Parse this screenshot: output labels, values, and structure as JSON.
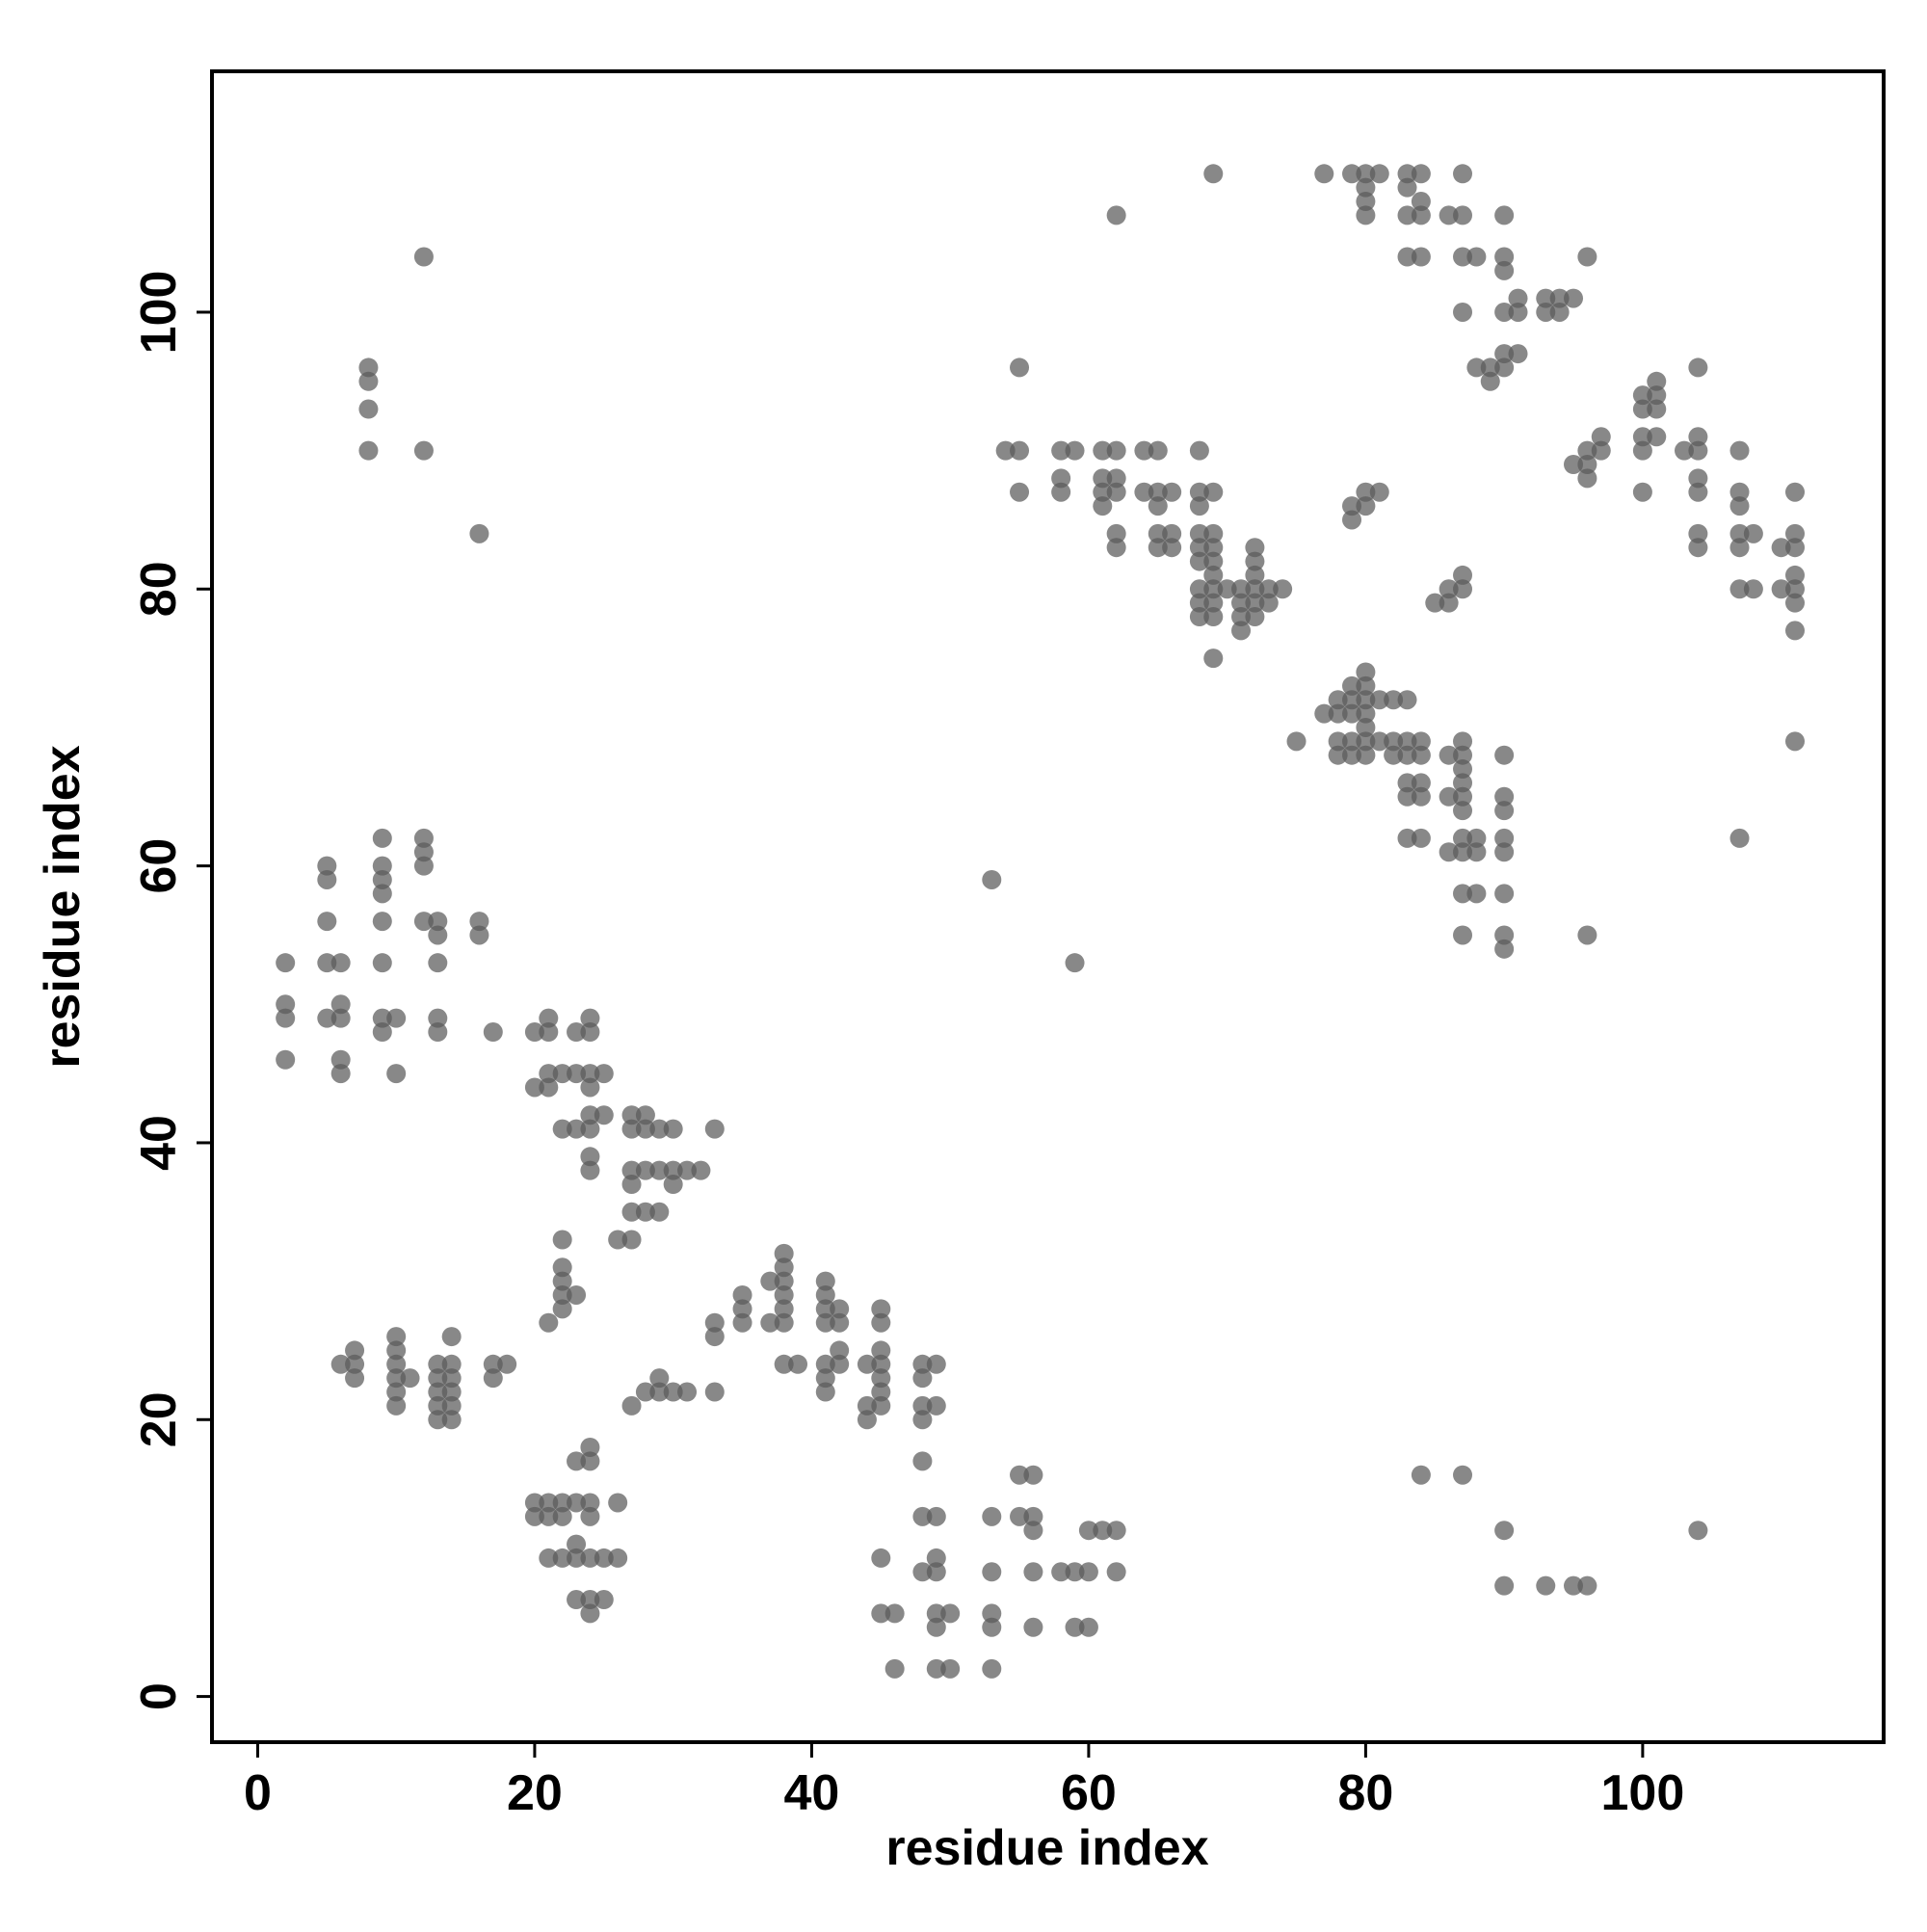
{
  "chart_data": {
    "type": "scatter",
    "xlabel": "residue index",
    "ylabel": "residue index",
    "xlim": [
      -3.3,
      117.4
    ],
    "ylim": [
      -3.3,
      117.4
    ],
    "xticks": [
      0,
      20,
      40,
      60,
      80,
      100
    ],
    "yticks": [
      0,
      20,
      40,
      60,
      80,
      100
    ],
    "color": "#5a5a5a",
    "grid": false,
    "x": [
      69,
      77,
      79,
      80,
      81,
      83,
      84,
      87,
      80,
      83,
      80,
      84,
      62,
      80,
      83,
      84,
      86,
      87,
      90,
      12,
      83,
      84,
      87,
      88,
      90,
      96,
      90,
      91,
      93,
      94,
      95,
      87,
      90,
      91,
      93,
      94,
      90,
      91,
      8,
      55,
      88,
      89,
      90,
      104,
      8,
      89,
      101,
      100,
      101,
      8,
      100,
      101,
      97,
      100,
      101,
      104,
      8,
      12,
      54,
      55,
      58,
      59,
      61,
      62,
      64,
      65,
      68,
      96,
      97,
      100,
      103,
      104,
      107,
      95,
      96,
      58,
      61,
      62,
      96,
      104,
      55,
      58,
      61,
      62,
      64,
      65,
      66,
      68,
      69,
      80,
      81,
      100,
      104,
      107,
      111,
      61,
      65,
      68,
      79,
      80,
      107,
      79,
      16,
      62,
      65,
      66,
      68,
      69,
      104,
      107,
      108,
      111,
      62,
      65,
      66,
      68,
      69,
      72,
      104,
      107,
      110,
      111,
      68,
      69,
      72,
      69,
      72,
      87,
      111,
      68,
      69,
      70,
      71,
      72,
      73,
      74,
      86,
      87,
      107,
      108,
      110,
      111,
      68,
      69,
      71,
      72,
      73,
      85,
      86,
      111,
      68,
      69,
      71,
      72,
      71,
      111,
      69,
      80,
      79,
      80,
      78,
      79,
      80,
      81,
      82,
      83,
      77,
      78,
      79,
      80,
      80,
      75,
      78,
      79,
      80,
      81,
      82,
      83,
      84,
      87,
      111,
      78,
      79,
      80,
      82,
      83,
      84,
      86,
      87,
      90,
      87,
      83,
      84,
      87,
      83,
      84,
      86,
      87,
      90,
      87,
      90,
      9,
      12,
      83,
      84,
      87,
      88,
      90,
      107,
      12,
      86,
      87,
      88,
      90,
      5,
      9,
      12,
      5,
      9,
      53,
      9,
      87,
      88,
      90,
      5,
      9,
      12,
      13,
      16,
      13,
      16,
      87,
      90,
      96,
      90,
      2,
      5,
      6,
      9,
      13,
      59,
      2,
      6,
      2,
      5,
      6,
      9,
      10,
      13,
      21,
      24,
      9,
      13,
      17,
      20,
      21,
      23,
      24,
      2,
      6,
      6,
      10,
      21,
      22,
      23,
      24,
      25,
      20,
      21,
      24,
      24,
      25,
      27,
      28,
      22,
      23,
      24,
      27,
      28,
      29,
      30,
      33,
      24,
      24,
      27,
      28,
      29,
      30,
      31,
      32,
      27,
      30,
      27,
      28,
      29,
      22,
      26,
      27,
      38,
      22,
      38,
      22,
      37,
      38,
      41,
      22,
      23,
      35,
      38,
      41,
      22,
      35,
      38,
      41,
      42,
      45,
      21,
      33,
      35,
      37,
      38,
      41,
      42,
      45,
      10,
      14,
      33,
      7,
      10,
      42,
      45,
      6,
      7,
      10,
      13,
      14,
      17,
      18,
      38,
      39,
      41,
      42,
      44,
      45,
      48,
      49,
      7,
      10,
      11,
      13,
      14,
      17,
      29,
      41,
      45,
      48,
      10,
      13,
      14,
      28,
      29,
      30,
      31,
      33,
      41,
      45,
      10,
      13,
      14,
      27,
      44,
      45,
      48,
      49,
      13,
      14,
      44,
      48,
      24,
      23,
      24,
      48,
      55,
      56,
      84,
      87,
      20,
      21,
      22,
      23,
      24,
      26,
      20,
      21,
      22,
      24,
      48,
      49,
      53,
      55,
      56,
      56,
      60,
      61,
      62,
      90,
      104,
      23,
      21,
      22,
      23,
      24,
      25,
      26,
      45,
      49,
      48,
      49,
      53,
      56,
      58,
      59,
      60,
      62,
      90,
      93,
      95,
      96,
      23,
      24,
      25,
      24,
      45,
      46,
      49,
      50,
      53,
      49,
      53,
      56,
      59,
      60,
      46,
      49,
      50,
      53
    ],
    "values": [
      110,
      110,
      110,
      110,
      110,
      110,
      110,
      110,
      109,
      109,
      108,
      108,
      107,
      107,
      107,
      107,
      107,
      107,
      107,
      104,
      104,
      104,
      104,
      104,
      104,
      104,
      103,
      101,
      101,
      101,
      101,
      100,
      100,
      100,
      100,
      100,
      97,
      97,
      96,
      96,
      96,
      96,
      96,
      96,
      95,
      95,
      95,
      94,
      94,
      93,
      93,
      93,
      91,
      91,
      91,
      91,
      90,
      90,
      90,
      90,
      90,
      90,
      90,
      90,
      90,
      90,
      90,
      90,
      90,
      90,
      90,
      90,
      90,
      89,
      89,
      88,
      88,
      88,
      88,
      88,
      87,
      87,
      87,
      87,
      87,
      87,
      87,
      87,
      87,
      87,
      87,
      87,
      87,
      87,
      87,
      86,
      86,
      86,
      86,
      86,
      86,
      85,
      84,
      84,
      84,
      84,
      84,
      84,
      84,
      84,
      84,
      84,
      83,
      83,
      83,
      83,
      83,
      83,
      83,
      83,
      83,
      83,
      82,
      82,
      82,
      81,
      81,
      81,
      81,
      80,
      80,
      80,
      80,
      80,
      80,
      80,
      80,
      80,
      80,
      80,
      80,
      80,
      79,
      79,
      79,
      79,
      79,
      79,
      79,
      79,
      78,
      78,
      78,
      78,
      77,
      77,
      75,
      74,
      73,
      73,
      72,
      72,
      72,
      72,
      72,
      72,
      71,
      71,
      71,
      71,
      70,
      69,
      69,
      69,
      69,
      69,
      69,
      69,
      69,
      69,
      69,
      68,
      68,
      68,
      68,
      68,
      68,
      68,
      68,
      68,
      67,
      66,
      66,
      66,
      65,
      65,
      65,
      65,
      65,
      64,
      64,
      62,
      62,
      62,
      62,
      62,
      62,
      62,
      62,
      61,
      61,
      61,
      61,
      61,
      60,
      60,
      60,
      59,
      59,
      59,
      58,
      58,
      58,
      58,
      56,
      56,
      56,
      56,
      56,
      55,
      55,
      55,
      55,
      55,
      54,
      53,
      53,
      53,
      53,
      53,
      53,
      50,
      50,
      49,
      49,
      49,
      49,
      49,
      49,
      49,
      49,
      48,
      48,
      48,
      48,
      48,
      48,
      48,
      46,
      46,
      45,
      45,
      45,
      45,
      45,
      45,
      45,
      44,
      44,
      44,
      42,
      42,
      42,
      42,
      41,
      41,
      41,
      41,
      41,
      41,
      41,
      41,
      39,
      38,
      38,
      38,
      38,
      38,
      38,
      38,
      37,
      37,
      35,
      35,
      35,
      33,
      33,
      33,
      32,
      31,
      31,
      30,
      30,
      30,
      30,
      29,
      29,
      29,
      29,
      29,
      28,
      28,
      28,
      28,
      28,
      28,
      27,
      27,
      27,
      27,
      27,
      27,
      27,
      27,
      26,
      26,
      26,
      25,
      25,
      25,
      25,
      24,
      24,
      24,
      24,
      24,
      24,
      24,
      24,
      24,
      24,
      24,
      24,
      24,
      24,
      24,
      23,
      23,
      23,
      23,
      23,
      23,
      23,
      23,
      23,
      23,
      22,
      22,
      22,
      22,
      22,
      22,
      22,
      22,
      22,
      22,
      21,
      21,
      21,
      21,
      21,
      21,
      21,
      21,
      20,
      20,
      20,
      20,
      18,
      17,
      17,
      17,
      16,
      16,
      16,
      16,
      14,
      14,
      14,
      14,
      14,
      14,
      13,
      13,
      13,
      13,
      13,
      13,
      13,
      13,
      13,
      12,
      12,
      12,
      12,
      12,
      12,
      11,
      10,
      10,
      10,
      10,
      10,
      10,
      10,
      10,
      9,
      9,
      9,
      9,
      9,
      9,
      9,
      9,
      8,
      8,
      8,
      8,
      7,
      7,
      7,
      6,
      6,
      6,
      6,
      6,
      6,
      5,
      5,
      5,
      5,
      5,
      2,
      2,
      2,
      2
    ]
  }
}
